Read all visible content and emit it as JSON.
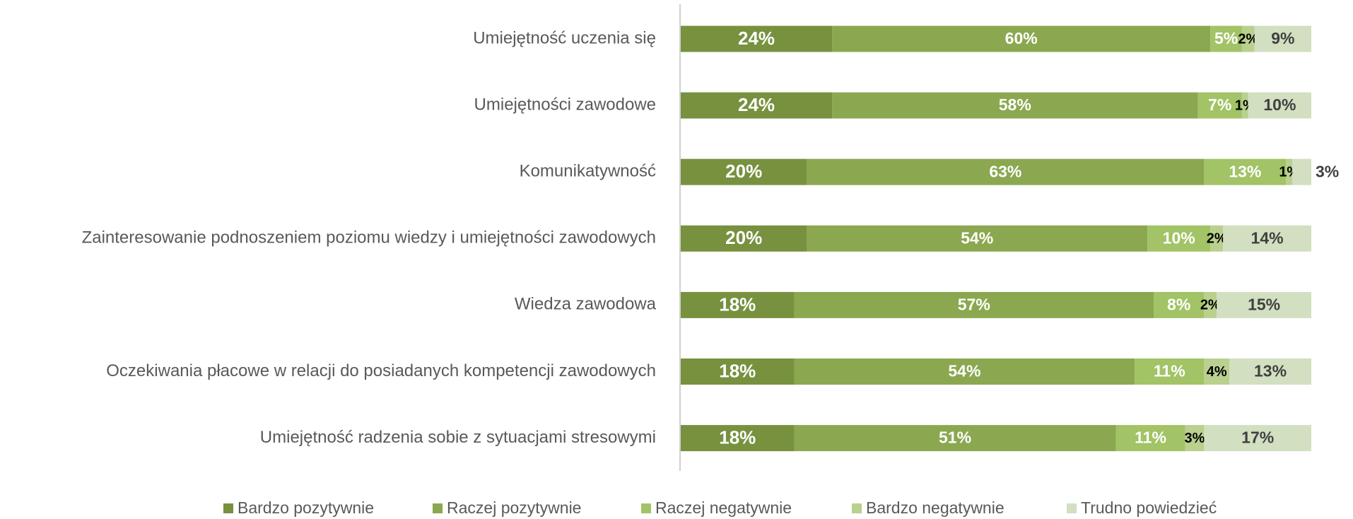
{
  "chart_data": {
    "type": "stacked-barh",
    "categories": [
      "Umiejętność uczenia się",
      "Umiejętności zawodowe",
      "Komunikatywność",
      "Zainteresowanie podnoszeniem poziomu wiedzy i umiejętności zawodowych",
      "Wiedza zawodowa",
      "Oczekiwania płacowe w relacji do posiadanych kompetencji zawodowych",
      "Umiejętność radzenia sobie z sytuacjami stresowymi"
    ],
    "xlim": [
      0,
      100
    ],
    "legend": "bottom",
    "series": [
      {
        "name": "Bardzo pozytywnie",
        "color": "#77913f",
        "label_color": "#ffffff",
        "values": [
          24,
          24,
          20,
          20,
          18,
          18,
          18
        ],
        "value_labels": [
          "24%",
          "24%",
          "20%",
          "20%",
          "18%",
          "18%",
          "18%"
        ]
      },
      {
        "name": "Raczej pozytywnie",
        "color": "#8ba850",
        "label_color": "#ffffff",
        "values": [
          60,
          58,
          63,
          54,
          57,
          54,
          51
        ],
        "value_labels": [
          "60%",
          "58%",
          "63%",
          "54%",
          "57%",
          "54%",
          "51%"
        ]
      },
      {
        "name": "Raczej negatywnie",
        "color": "#a2c366",
        "label_color": "#ffffff",
        "values": [
          5,
          7,
          13,
          10,
          8,
          11,
          11
        ],
        "value_labels": [
          "5%",
          "7%",
          "13%",
          "10%",
          "8%",
          "11%",
          "11%"
        ]
      },
      {
        "name": "Bardzo negatywnie",
        "color": "#b9d08f",
        "label_color": "#000000",
        "values": [
          2,
          1,
          1,
          2,
          2,
          4,
          3
        ],
        "value_labels": [
          "2%",
          "1%",
          "1%",
          "2%",
          "2%",
          "4%",
          "3%"
        ]
      },
      {
        "name": "Trudno powiedzieć",
        "color": "#d2dfc0",
        "label_color": "#404040",
        "values": [
          9,
          10,
          3,
          14,
          15,
          13,
          17
        ],
        "value_labels": [
          "9%",
          "10%",
          "3%",
          "14%",
          "15%",
          "13%",
          "17%"
        ]
      }
    ]
  }
}
